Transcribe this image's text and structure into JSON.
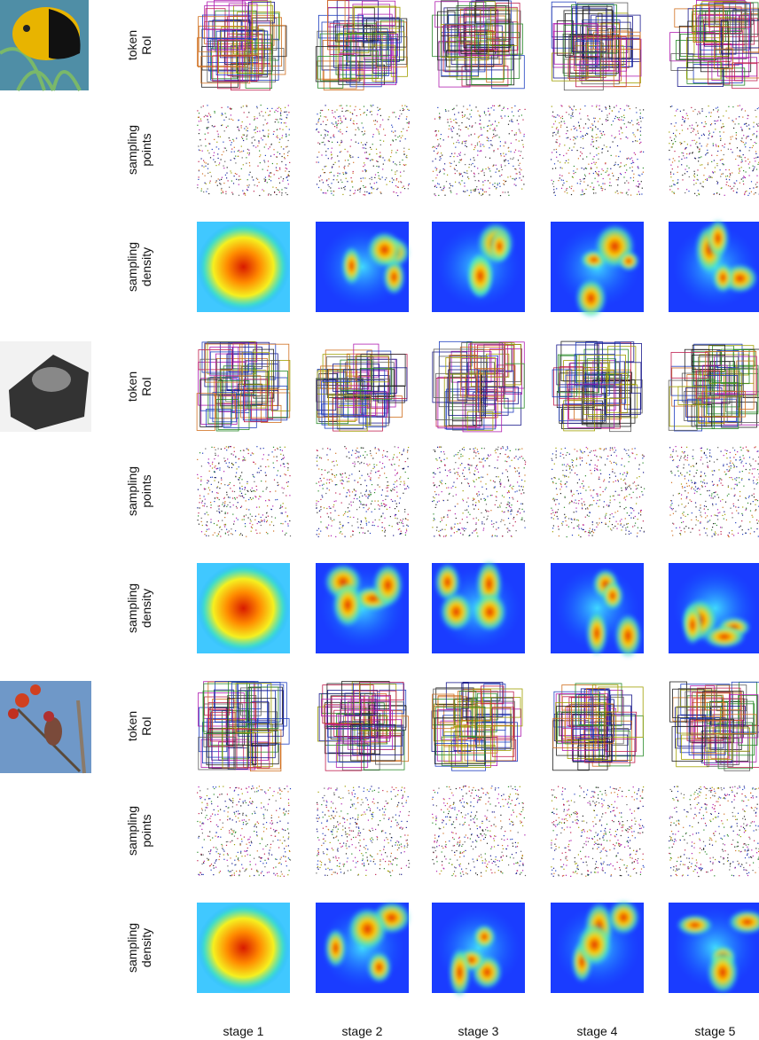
{
  "groups": [
    {
      "rows": [
        {
          "label": [
            "token",
            "RoI"
          ]
        },
        {
          "label": [
            "sampling",
            "points"
          ]
        },
        {
          "label": [
            "sampling",
            "density"
          ]
        }
      ]
    },
    {
      "rows": [
        {
          "label": [
            "token",
            "RoI"
          ]
        },
        {
          "label": [
            "sampling",
            "points"
          ]
        },
        {
          "label": [
            "sampling",
            "density"
          ]
        }
      ]
    },
    {
      "rows": [
        {
          "label": [
            "token",
            "RoI"
          ]
        },
        {
          "label": [
            "sampling",
            "points"
          ]
        },
        {
          "label": [
            "sampling",
            "density"
          ]
        }
      ]
    }
  ],
  "stages": [
    "stage 1",
    "stage 2",
    "stage 3",
    "stage 4",
    "stage 5"
  ]
}
